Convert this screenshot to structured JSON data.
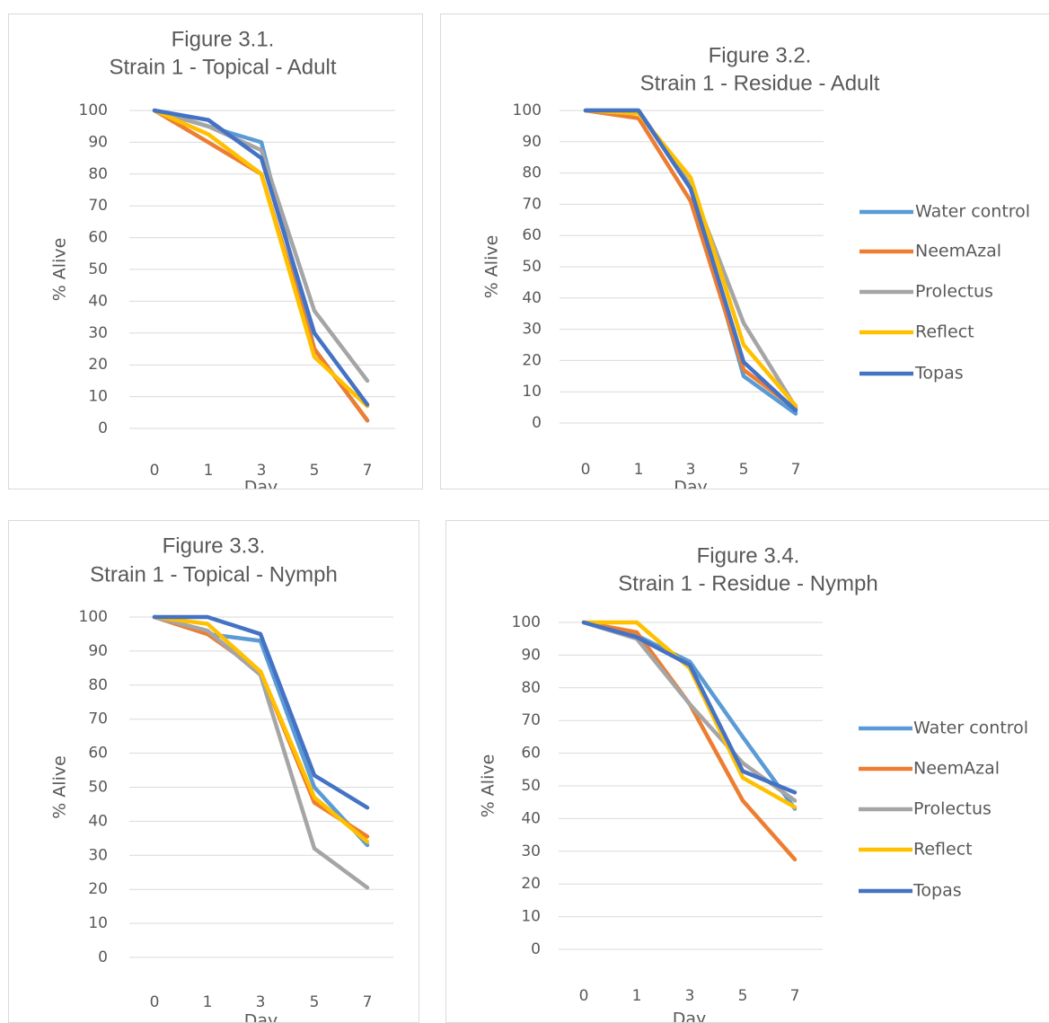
{
  "chart_data": [
    {
      "type": "line",
      "title": "Figure 3.1.",
      "subtitle": "Strain 1 - Topical - Adult",
      "xlabel": "Day",
      "ylabel": "% Alive",
      "categories": [
        "0",
        "1",
        "3",
        "5",
        "7"
      ],
      "ylim": [
        0,
        100
      ],
      "yticks": [
        0,
        10,
        20,
        30,
        40,
        50,
        60,
        70,
        80,
        90,
        100
      ],
      "grid": true,
      "legend": "none",
      "series": [
        {
          "name": "Water control",
          "values": [
            100,
            95,
            90,
            25,
            2.5
          ]
        },
        {
          "name": "NeemAzal",
          "values": [
            100,
            90,
            80,
            25,
            2.5
          ]
        },
        {
          "name": "Prolectus",
          "values": [
            100,
            95,
            87.5,
            37,
            15
          ]
        },
        {
          "name": "Reflect",
          "values": [
            100,
            92.5,
            80,
            22.5,
            7
          ]
        },
        {
          "name": "Topas",
          "values": [
            100,
            97,
            85,
            30,
            7.5
          ]
        }
      ]
    },
    {
      "type": "line",
      "title": "Figure 3.2.",
      "subtitle": "Strain 1 - Residue - Adult",
      "xlabel": "Day",
      "ylabel": "% Alive",
      "categories": [
        "0",
        "1",
        "3",
        "5",
        "7"
      ],
      "ylim": [
        0,
        100
      ],
      "yticks": [
        0,
        10,
        20,
        30,
        40,
        50,
        60,
        70,
        80,
        90,
        100
      ],
      "grid": true,
      "legend": "right",
      "series": [
        {
          "name": "Water control",
          "values": [
            100,
            100,
            75,
            15,
            3
          ]
        },
        {
          "name": "NeemAzal",
          "values": [
            100,
            97.5,
            71,
            17,
            4.5
          ]
        },
        {
          "name": "Prolectus",
          "values": [
            100,
            100,
            76,
            32,
            5
          ]
        },
        {
          "name": "Reflect",
          "values": [
            100,
            99,
            78.5,
            25,
            5.5
          ]
        },
        {
          "name": "Topas",
          "values": [
            100,
            100,
            75,
            19.5,
            4
          ]
        }
      ]
    },
    {
      "type": "line",
      "title": "Figure 3.3.",
      "subtitle": "Strain 1 - Topical - Nymph",
      "xlabel": "Day",
      "ylabel": "% Alive",
      "categories": [
        "0",
        "1",
        "3",
        "5",
        "7"
      ],
      "ylim": [
        0,
        100
      ],
      "yticks": [
        0,
        10,
        20,
        30,
        40,
        50,
        60,
        70,
        80,
        90,
        100
      ],
      "grid": true,
      "legend": "none",
      "series": [
        {
          "name": "Water control",
          "values": [
            100,
            95,
            93,
            50,
            33
          ]
        },
        {
          "name": "NeemAzal",
          "values": [
            100,
            95,
            84,
            45.5,
            35.5
          ]
        },
        {
          "name": "Prolectus",
          "values": [
            100,
            96,
            83,
            32,
            20.5
          ]
        },
        {
          "name": "Reflect",
          "values": [
            100,
            98,
            84,
            47,
            34
          ]
        },
        {
          "name": "Topas",
          "values": [
            100,
            100,
            95,
            53.5,
            44
          ]
        }
      ]
    },
    {
      "type": "line",
      "title": "Figure 3.4.",
      "subtitle": "Strain 1 - Residue - Nymph",
      "xlabel": "Day",
      "ylabel": "% Alive",
      "categories": [
        "0",
        "1",
        "3",
        "5",
        "7"
      ],
      "ylim": [
        0,
        100
      ],
      "yticks": [
        0,
        10,
        20,
        30,
        40,
        50,
        60,
        70,
        80,
        90,
        100
      ],
      "grid": true,
      "legend": "right",
      "series": [
        {
          "name": "Water control",
          "values": [
            100,
            96,
            88,
            65,
            43
          ]
        },
        {
          "name": "NeemAzal",
          "values": [
            100,
            97,
            75,
            45.5,
            27.5
          ]
        },
        {
          "name": "Prolectus",
          "values": [
            100,
            95,
            75,
            57,
            45.5
          ]
        },
        {
          "name": "Reflect",
          "values": [
            100,
            100,
            86,
            52.5,
            43.5
          ]
        },
        {
          "name": "Topas",
          "values": [
            100,
            95.5,
            87,
            54.5,
            48
          ]
        }
      ]
    }
  ],
  "colors": {
    "Water control": "#5b9bd5",
    "NeemAzal": "#ed7d31",
    "Prolectus": "#a5a5a5",
    "Reflect": "#ffc000",
    "Topas": "#4472c4",
    "grid": "#d9d9d9",
    "text": "#595959"
  }
}
